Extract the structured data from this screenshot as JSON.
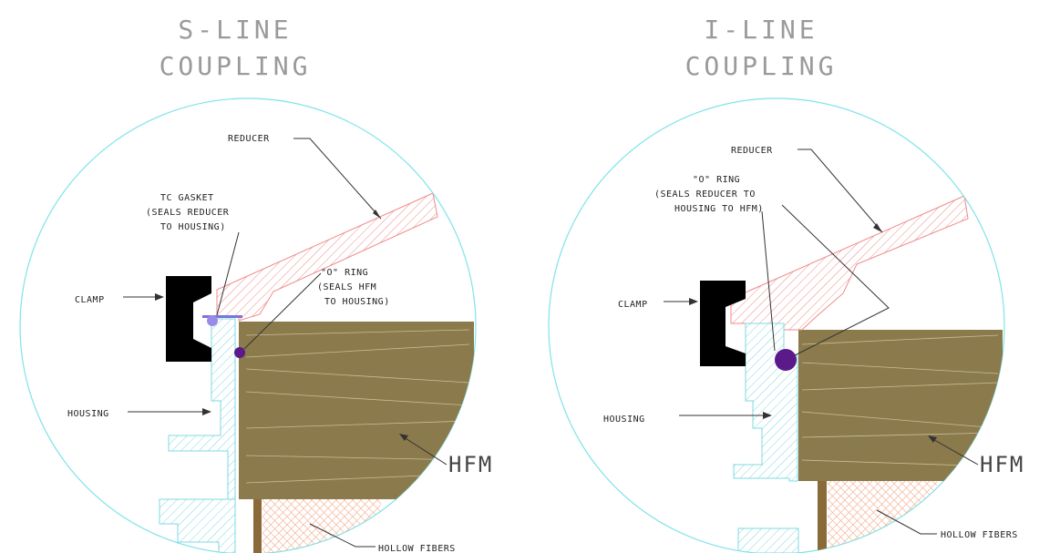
{
  "left": {
    "title_line1": "S-LINE",
    "title_line2": "COUPLING",
    "labels": {
      "reducer": "REDUCER",
      "gasket_1": "TC GASKET",
      "gasket_2": "(SEALS REDUCER",
      "gasket_3": "TO HOUSING)",
      "oring_1": "\"O\" RING",
      "oring_2": "(SEALS HFM",
      "oring_3": "TO HOUSING)",
      "clamp": "CLAMP",
      "housing": "HOUSING",
      "hfm": "HFM",
      "fibers": "HOLLOW FIBERS"
    }
  },
  "right": {
    "title_line1": "I-LINE",
    "title_line2": "COUPLING",
    "labels": {
      "reducer": "REDUCER",
      "oring_1": "\"O\" RING",
      "oring_2": "(SEALS REDUCER TO",
      "oring_3": "HOUSING TO HFM)",
      "clamp": "CLAMP",
      "housing": "HOUSING",
      "hfm": "HFM",
      "fibers": "HOLLOW FIBERS"
    }
  },
  "colors": {
    "hfm_fill": "#8b7a4b",
    "clamp_fill": "#000000",
    "reducer_hatch": "#f08a8a",
    "housing_hatch": "#7fd8e0",
    "oring_fill": "#5a1a8a",
    "gasket_fill": "#9a8ae8",
    "circle_stroke": "#7fe3ea"
  }
}
